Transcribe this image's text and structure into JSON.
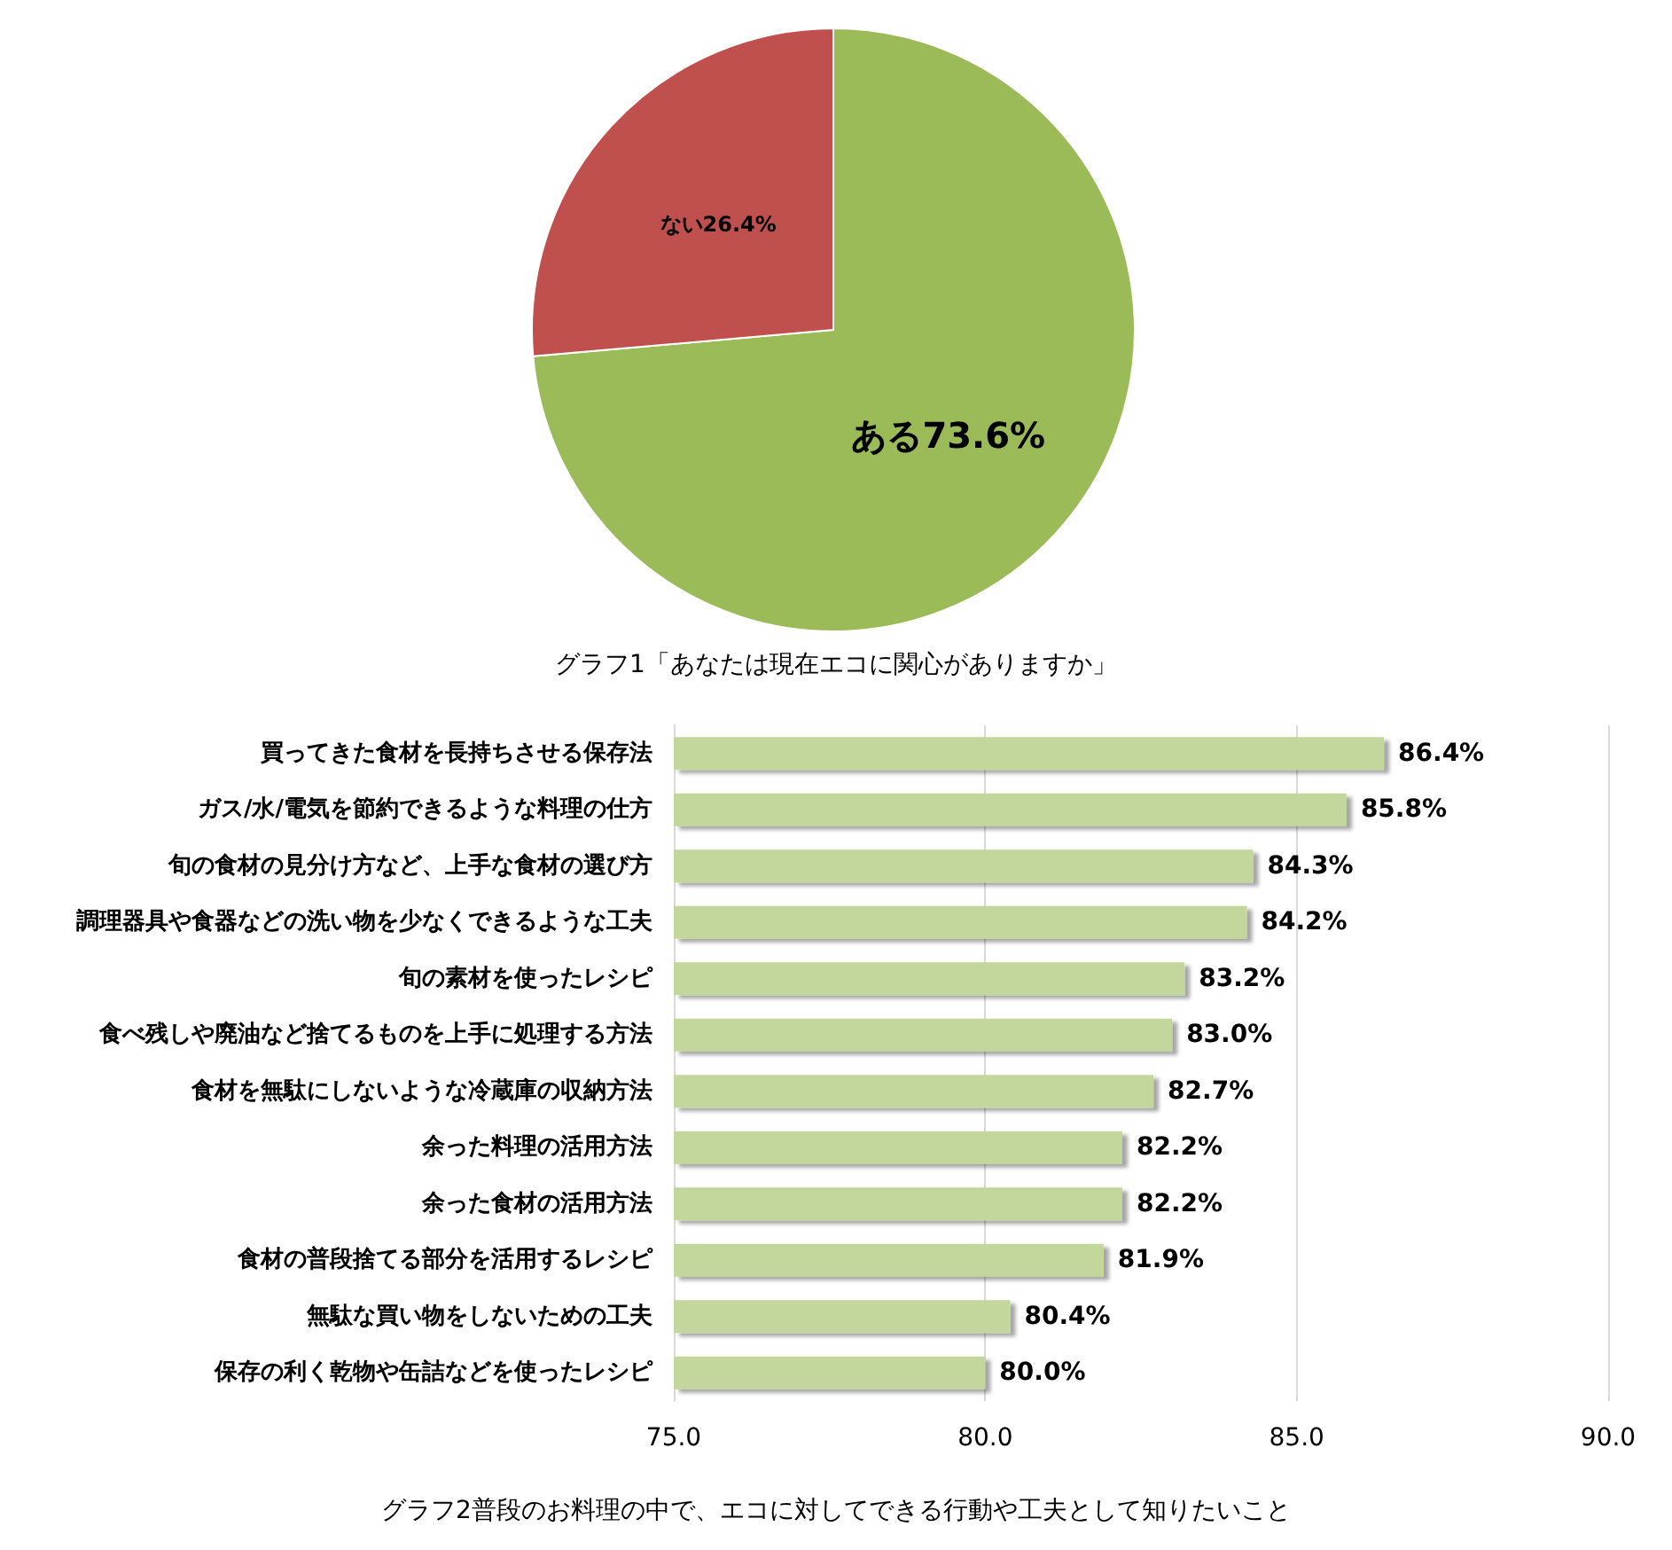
{
  "chart_data": [
    {
      "type": "pie",
      "title": "グラフ1「あなたは現在エコに関心がありますか」",
      "categories": [
        "ある",
        "ない"
      ],
      "values": [
        73.6,
        26.4
      ],
      "colors": [
        "#9bbb59",
        "#c0504d"
      ],
      "value_labels": [
        "73.6%",
        "26.4%"
      ],
      "legend": false
    },
    {
      "type": "bar",
      "orientation": "horizontal",
      "title": "グラフ2普段のお料理の中で、エコに対してできる行動や工夫として知りたいこと",
      "categories": [
        "買ってきた食材を長持ちさせる保存法",
        "ガス/水/電気を節約できるような料理の仕方",
        "旬の食材の見分け方など、上手な食材の選び方",
        "調理器具や食器などの洗い物を少なくできるような工夫",
        "旬の素材を使ったレシピ",
        "食べ残しや廃油など捨てるものを上手に処理する方法",
        "食材を無駄にしないような冷蔵庫の収納方法",
        "余った料理の活用方法",
        "余った食材の活用方法",
        "食材の普段捨てる部分を活用するレシピ",
        "無駄な買い物をしないための工夫",
        "保存の利く乾物や缶詰などを使ったレシピ"
      ],
      "series": [
        {
          "color": "#c3d69b",
          "values": [
            86.4,
            85.8,
            84.3,
            84.2,
            83.2,
            83.0,
            82.7,
            82.2,
            82.2,
            81.9,
            80.4,
            80.0
          ],
          "value_labels": [
            "86.4%",
            "85.8%",
            "84.3%",
            "84.2%",
            "83.2%",
            "83.0%",
            "82.7%",
            "82.2%",
            "82.2%",
            "81.9%",
            "80.4%",
            "80.0%"
          ]
        }
      ],
      "xlim": [
        75,
        90
      ],
      "xticks": [
        {
          "value": 75,
          "label": "75.0"
        },
        {
          "value": 80,
          "label": "80.0"
        },
        {
          "value": 85,
          "label": "85.0"
        },
        {
          "value": 90,
          "label": "90.0"
        }
      ],
      "grid": "x",
      "legend": false
    }
  ]
}
